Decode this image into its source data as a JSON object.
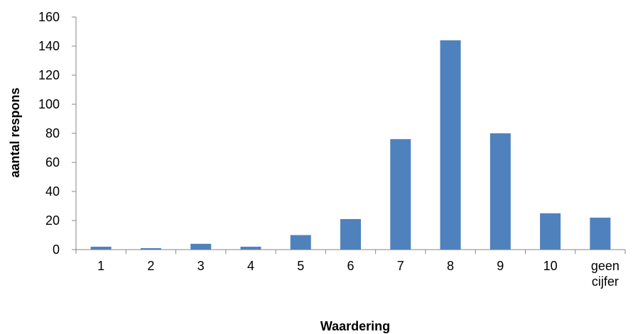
{
  "chart_data": {
    "type": "bar",
    "title": "",
    "xlabel": "Waardering",
    "ylabel": "aantal respons",
    "categories": [
      "1",
      "2",
      "3",
      "4",
      "5",
      "6",
      "7",
      "8",
      "9",
      "10",
      "geen cijfer"
    ],
    "values": [
      2,
      1,
      4,
      2,
      10,
      21,
      76,
      144,
      80,
      25,
      22
    ],
    "ylim": [
      0,
      160
    ],
    "yticks": [
      0,
      20,
      40,
      60,
      80,
      100,
      120,
      140,
      160
    ],
    "grid": false,
    "legend": "none",
    "bar_color": "#4F81BD",
    "axis_color": "#868686"
  }
}
